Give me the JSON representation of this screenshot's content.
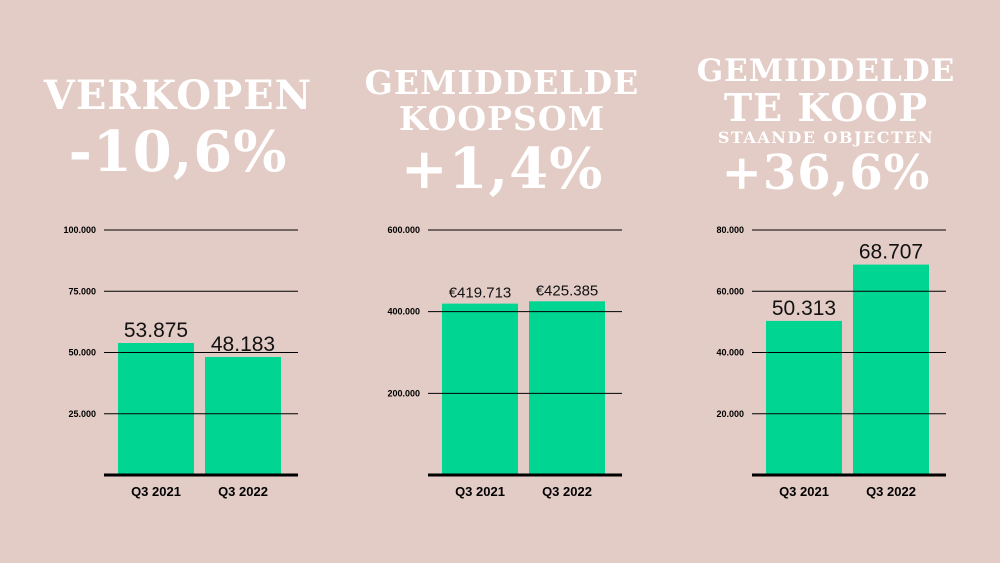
{
  "colors": {
    "background": "#e4ccc6",
    "bar": "#00d592",
    "headline": "#ffffff",
    "axis": "#000000"
  },
  "headlines": [
    {
      "lines": [
        {
          "text": "VERKOPEN",
          "size": "big"
        },
        {
          "text": "-10,6%",
          "size": "big"
        }
      ]
    },
    {
      "lines": [
        {
          "text": "GEMIDDELDE",
          "size": "mid"
        },
        {
          "text": "KOOPSOM",
          "size": "mid"
        },
        {
          "text": "+1,4%",
          "size": "big"
        }
      ]
    },
    {
      "lines": [
        {
          "text": "GEMIDDELDE",
          "size": "mid"
        },
        {
          "text": "TE KOOP",
          "size": "mid"
        },
        {
          "text": "STAANDE OBJECTEN",
          "size": "small"
        },
        {
          "text": "+36,6%",
          "size": "big"
        }
      ]
    }
  ],
  "chart_data": [
    {
      "type": "bar",
      "categories": [
        "Q3 2021",
        "Q3 2022"
      ],
      "values": [
        53875,
        48183
      ],
      "data_labels": [
        "53.875",
        "48.183"
      ],
      "yticks": [
        25000,
        50000,
        75000,
        100000
      ],
      "ytick_labels": [
        "25.000",
        "50.000",
        "75.000",
        "100.000"
      ],
      "ylim": [
        0,
        100000
      ],
      "grid": true
    },
    {
      "type": "bar",
      "categories": [
        "Q3 2021",
        "Q3 2022"
      ],
      "values": [
        419713,
        425385
      ],
      "data_labels": [
        "€419.713",
        "€425.385"
      ],
      "yticks": [
        200000,
        400000,
        600000
      ],
      "ytick_labels": [
        "200.000",
        "400.000",
        "600.000"
      ],
      "ylim": [
        0,
        600000
      ],
      "grid": true
    },
    {
      "type": "bar",
      "categories": [
        "Q3 2021",
        "Q3 2022"
      ],
      "values": [
        50313,
        68707
      ],
      "data_labels": [
        "50.313",
        "68.707"
      ],
      "yticks": [
        20000,
        40000,
        60000,
        80000
      ],
      "ytick_labels": [
        "20.000",
        "40.000",
        "60.000",
        "80.000"
      ],
      "ylim": [
        0,
        80000
      ],
      "grid": true
    }
  ]
}
